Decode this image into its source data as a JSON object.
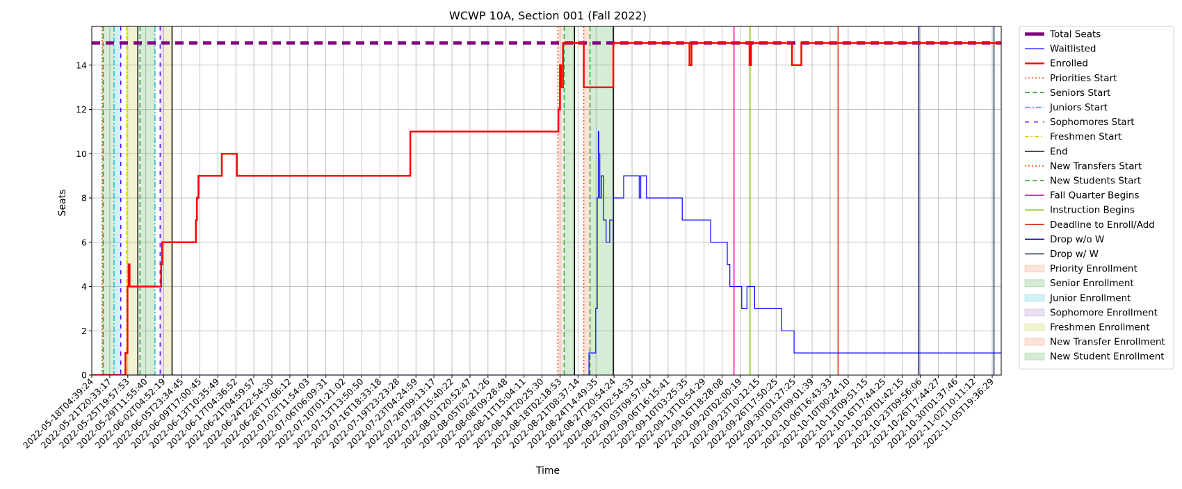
{
  "chart_data": {
    "type": "line",
    "title": "WCWP 10A, Section 001 (Fall 2022)",
    "xlabel": "Time",
    "ylabel": "Seats",
    "ylim": [
      0,
      15.75
    ],
    "xlim": [
      0,
      175.6
    ],
    "grid": true,
    "legend_position": "outside-right",
    "y_ticks": [
      0,
      2,
      4,
      6,
      8,
      10,
      12,
      14
    ],
    "x_tick_labels": [
      "2022-05-18T04:39:24",
      "2022-05-21T20:33:17",
      "2022-05-25T19:57:53",
      "2022-05-29T11:55:40",
      "2022-06-02T04:52:19",
      "2022-06-05T23:34:45",
      "2022-06-09T17:00:45",
      "2022-06-13T10:35:49",
      "2022-06-17T04:36:52",
      "2022-06-21T04:59:57",
      "2022-06-24T22:54:30",
      "2022-06-28T17:06:12",
      "2022-07-02T11:54:03",
      "2022-07-06T06:09:31",
      "2022-07-10T01:21:02",
      "2022-07-13T13:50:50",
      "2022-07-16T18:33:18",
      "2022-07-19T23:23:28",
      "2022-07-23T04:24:59",
      "2022-07-26T09:13:17",
      "2022-07-29T15:40:22",
      "2022-08-01T20:52:47",
      "2022-08-05T02:21:26",
      "2022-08-08T09:28:48",
      "2022-08-11T15:04:11",
      "2022-08-14T20:25:30",
      "2022-08-18T02:18:53",
      "2022-08-21T08:37:14",
      "2022-08-24T14:49:35",
      "2022-08-27T20:54:24",
      "2022-08-31T02:54:33",
      "2022-09-03T09:57:04",
      "2022-09-06T16:15:41",
      "2022-09-10T03:25:35",
      "2022-09-13T10:54:29",
      "2022-09-16T18:28:08",
      "2022-09-20T02:00:19",
      "2022-09-23T10:12:15",
      "2022-09-26T17:50:25",
      "2022-09-30T01:27:25",
      "2022-10-03T09:01:39",
      "2022-10-06T16:43:33",
      "2022-10-10T00:24:10",
      "2022-10-13T09:51:15",
      "2022-10-16T17:44:25",
      "2022-10-20T01:42:15",
      "2022-10-23T09:56:06",
      "2022-10-26T17:44:27",
      "2022-10-30T01:37:46",
      "2022-11-02T10:11:12",
      "2022-11-05T19:36:29"
    ],
    "x_units_note": "x values are in index units of the x tick labels (one unit = one tick interval)",
    "regions": [
      {
        "name": "New Student Enrollment",
        "x0": 2.0,
        "x1": 2.2,
        "color": "#2ca02c"
      },
      {
        "name": "Senior Enrollment",
        "x0": 2.2,
        "x1": 4.3,
        "color": "#2ca02c"
      },
      {
        "name": "Junior Enrollment",
        "x0": 4.3,
        "x1": 5.6,
        "color": "#17becf"
      },
      {
        "name": "Freshmen Enrollment",
        "x0": 6.7,
        "x1": 8.9,
        "color": "#bcbd22"
      },
      {
        "name": "Senior Enrollment",
        "x0": 9.3,
        "x1": 12.2,
        "color": "#2ca02c"
      },
      {
        "name": "Sophomore Enrollment",
        "x0": 13.2,
        "x1": 14.0,
        "color": "#9467bd"
      },
      {
        "name": "Freshmen Enrollment",
        "x0": 14.0,
        "x1": 15.5,
        "color": "#bcbd22"
      },
      {
        "name": "Priority Enrollment",
        "x0": 90.0,
        "x1": 91.0,
        "color": "#e8743b"
      },
      {
        "name": "New Student Enrollment",
        "x0": 91.2,
        "x1": 93.2,
        "color": "#2ca02c"
      },
      {
        "name": "New Transfer Enrollment",
        "x0": 95.0,
        "x1": 96.2,
        "color": "#e8743b"
      },
      {
        "name": "New Student Enrollment",
        "x0": 96.2,
        "x1": 100.7,
        "color": "#2ca02c"
      }
    ],
    "vlines": [
      {
        "name": "Priorities Start",
        "x": 2.0,
        "color": "#ff4500",
        "dash": "2,3"
      },
      {
        "name": "Seniors Start",
        "x": 2.2,
        "color": "#2ca02c",
        "dash": "7,4"
      },
      {
        "name": "Juniors Start",
        "x": 4.3,
        "color": "#17becf",
        "dash": "8,3,2,3"
      },
      {
        "name": "Sophomores Start",
        "x": 5.6,
        "color": "#5500ff",
        "dash": "6,7"
      },
      {
        "name": "Freshmen Start",
        "x": 6.7,
        "color": "#d4d400",
        "dash": "6,3,2,3"
      },
      {
        "name": "Seniors Start",
        "x": 9.3,
        "color": "#2ca02c",
        "dash": "7,4"
      },
      {
        "name": "End",
        "x": 8.9,
        "color": "#000000",
        "dash": ""
      },
      {
        "name": "Juniors Start",
        "x": 12.2,
        "color": "#17becf",
        "dash": "8,3,2,3"
      },
      {
        "name": "Sophomores Start",
        "x": 13.2,
        "color": "#5500ff",
        "dash": "6,7"
      },
      {
        "name": "End",
        "x": 15.5,
        "color": "#000000",
        "dash": ""
      },
      {
        "name": "Priorities Start",
        "x": 90.0,
        "color": "#ff4500",
        "dash": "2,3"
      },
      {
        "name": "New Students Start",
        "x": 91.2,
        "color": "#2ca02c",
        "dash": "7,4"
      },
      {
        "name": "End",
        "x": 93.2,
        "color": "#000000",
        "dash": ""
      },
      {
        "name": "New Transfers Start",
        "x": 95.0,
        "color": "#ff4500",
        "dash": "2,3"
      },
      {
        "name": "New Students Start",
        "x": 96.2,
        "color": "#2ca02c",
        "dash": "7,4"
      },
      {
        "name": "End",
        "x": 100.7,
        "color": "#000000",
        "dash": ""
      },
      {
        "name": "Fall Quarter Begins",
        "x": 124.0,
        "color": "#ff00aa",
        "dash": ""
      },
      {
        "name": "Instruction Begins",
        "x": 127.1,
        "color": "#7fb800",
        "dash": ""
      },
      {
        "name": "Deadline to Enroll/Add",
        "x": 144.1,
        "color": "#cc3300",
        "dash": ""
      },
      {
        "name": "Drop w/o W",
        "x": 159.7,
        "color": "#000080",
        "dash": ""
      },
      {
        "name": "Drop w/ W",
        "x": 174.2,
        "color": "#1f2f4f",
        "dash": ""
      }
    ],
    "series": [
      {
        "name": "Total Seats",
        "color": "#800080",
        "dash": "12,8",
        "width": 5,
        "x": [
          0,
          175.6
        ],
        "y": [
          15,
          15
        ]
      },
      {
        "name": "Waitlisted",
        "color": "#0000ff",
        "width": 1.2,
        "x": [
          0,
          96.0,
          96.0,
          97.3,
          97.3,
          97.6,
          97.6,
          97.8,
          97.8,
          97.9,
          97.9,
          98.1,
          98.1,
          98.4,
          98.4,
          98.8,
          98.8,
          99.3,
          99.3,
          100.0,
          100.0,
          100.7,
          100.7,
          100.9,
          100.9,
          102.7,
          102.7,
          105.7,
          105.7,
          106.0,
          106.0,
          107.1,
          107.1,
          114.0,
          114.0,
          119.5,
          119.5,
          122.7,
          122.7,
          123.2,
          123.2,
          125.5,
          125.5,
          126.5,
          126.5,
          126.9,
          126.9,
          127.4,
          127.4,
          128.0,
          128.0,
          133.2,
          133.2,
          135.6,
          135.6,
          142.6,
          142.6,
          175.6
        ],
        "y": [
          0,
          0,
          1,
          1,
          3,
          3,
          8,
          8,
          11,
          11,
          10,
          10,
          8,
          8,
          9,
          9,
          7,
          7,
          6,
          6,
          7,
          7,
          8,
          8,
          8,
          8,
          9,
          9,
          8,
          8,
          9,
          9,
          8,
          8,
          7,
          7,
          6,
          6,
          5,
          5,
          4,
          4,
          3,
          3,
          4,
          4,
          4,
          4,
          4,
          4,
          3,
          3,
          2,
          2,
          1,
          1,
          1,
          1
        ]
      },
      {
        "name": "Enrolled",
        "color": "#ff0000",
        "width": 2.5,
        "x": [
          0,
          6.5,
          6.5,
          6.9,
          6.9,
          7.1,
          7.1,
          7.3,
          7.3,
          7.7,
          7.7,
          7.8,
          7.8,
          13.4,
          13.4,
          13.6,
          13.6,
          13.8,
          13.8,
          20.1,
          20.1,
          20.3,
          20.3,
          20.6,
          20.6,
          25.1,
          25.1,
          28.0,
          28.0,
          61.5,
          61.5,
          90.1,
          90.1,
          90.4,
          90.4,
          90.6,
          90.6,
          91.0,
          91.0,
          92.0,
          92.0,
          95.0,
          95.0,
          100.7,
          100.7,
          115.4,
          115.4,
          115.8,
          115.8,
          127.0,
          127.0,
          127.3,
          127.3,
          135.2,
          135.2,
          137.0,
          137.0,
          175.6
        ],
        "y": [
          0,
          0,
          1,
          1,
          4,
          4,
          5,
          5,
          4,
          4,
          4,
          4,
          4,
          4,
          5,
          5,
          6,
          6,
          6,
          6,
          7,
          7,
          8,
          8,
          9,
          9,
          10,
          10,
          9,
          9,
          11,
          11,
          12,
          12,
          14,
          14,
          13,
          13,
          15,
          15,
          15,
          15,
          13,
          13,
          15,
          15,
          14,
          14,
          15,
          15,
          14,
          14,
          15,
          15,
          14,
          14,
          15,
          15
        ]
      }
    ],
    "legend": [
      {
        "label": "Total Seats",
        "kind": "line",
        "color": "#800080",
        "dash": "",
        "width": 5
      },
      {
        "label": "Waitlisted",
        "kind": "line",
        "color": "#0000ff",
        "dash": "",
        "width": 1.2
      },
      {
        "label": "Enrolled",
        "kind": "line",
        "color": "#ff0000",
        "dash": "",
        "width": 2.5
      },
      {
        "label": "Priorities Start",
        "kind": "line",
        "color": "#ff4500",
        "dash": "2,3",
        "width": 1.5
      },
      {
        "label": "Seniors Start",
        "kind": "line",
        "color": "#2ca02c",
        "dash": "7,4",
        "width": 1.5
      },
      {
        "label": "Juniors Start",
        "kind": "line",
        "color": "#17becf",
        "dash": "8,3,2,3",
        "width": 1.5
      },
      {
        "label": "Sophomores Start",
        "kind": "line",
        "color": "#5500ff",
        "dash": "6,7",
        "width": 1.5
      },
      {
        "label": "Freshmen Start",
        "kind": "line",
        "color": "#d4d400",
        "dash": "6,3,2,3",
        "width": 1.5
      },
      {
        "label": "End",
        "kind": "line",
        "color": "#000000",
        "dash": "",
        "width": 1.5
      },
      {
        "label": "New Transfers Start",
        "kind": "line",
        "color": "#ff4500",
        "dash": "2,3",
        "width": 1.5
      },
      {
        "label": "New Students Start",
        "kind": "line",
        "color": "#2ca02c",
        "dash": "7,4",
        "width": 1.5
      },
      {
        "label": "Fall Quarter Begins",
        "kind": "line",
        "color": "#ff00aa",
        "dash": "",
        "width": 1.5
      },
      {
        "label": "Instruction Begins",
        "kind": "line",
        "color": "#7fb800",
        "dash": "",
        "width": 1.5
      },
      {
        "label": "Deadline to Enroll/Add",
        "kind": "line",
        "color": "#cc3300",
        "dash": "",
        "width": 1.5
      },
      {
        "label": "Drop w/o W",
        "kind": "line",
        "color": "#000080",
        "dash": "",
        "width": 1.5
      },
      {
        "label": "Drop w/ W",
        "kind": "line",
        "color": "#1f2f4f",
        "dash": "",
        "width": 1.5
      },
      {
        "label": "Priority Enrollment",
        "kind": "patch",
        "color": "#e8743b"
      },
      {
        "label": "Senior Enrollment",
        "kind": "patch",
        "color": "#2ca02c"
      },
      {
        "label": "Junior Enrollment",
        "kind": "patch",
        "color": "#17becf"
      },
      {
        "label": "Sophomore Enrollment",
        "kind": "patch",
        "color": "#9467bd"
      },
      {
        "label": "Freshmen Enrollment",
        "kind": "patch",
        "color": "#bcbd22"
      },
      {
        "label": "New Transfer Enrollment",
        "kind": "patch",
        "color": "#e8743b"
      },
      {
        "label": "New Student Enrollment",
        "kind": "patch",
        "color": "#2ca02c"
      }
    ]
  }
}
